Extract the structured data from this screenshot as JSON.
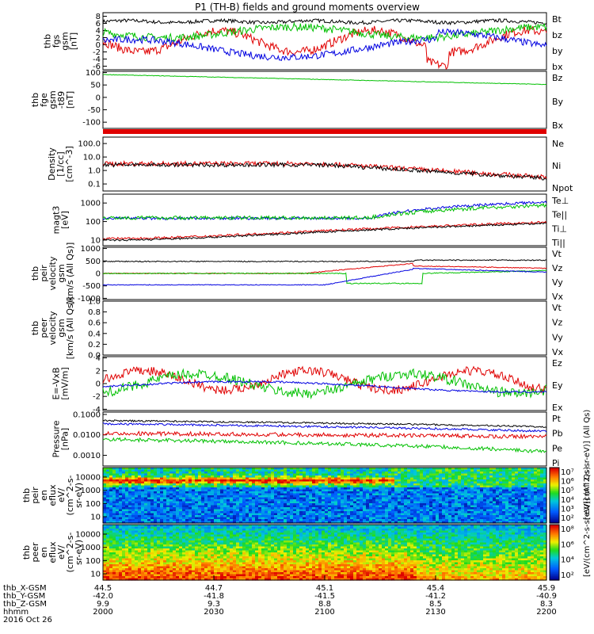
{
  "title": "P1 (TH-B) fields and ground moments overview",
  "colors": {
    "black": "#000000",
    "red": "#e00000",
    "green": "#00c000",
    "blue": "#0000e0"
  },
  "panels": [
    {
      "id": "fgs",
      "ylabel": [
        "thb",
        "fgs",
        "gsm",
        "[nT]"
      ],
      "ticks": [
        -6,
        -4,
        -2,
        0,
        2,
        4,
        6,
        8
      ],
      "ylim": [
        -7,
        9
      ],
      "legend": [
        "Bt",
        "bz",
        "by",
        "bx"
      ],
      "legend_colors": [
        "black",
        "red",
        "green",
        "blue"
      ]
    },
    {
      "id": "fge",
      "ylabel": [
        "thb",
        "fge",
        "gsm",
        "-t89",
        "[nT]"
      ],
      "ticks": [
        -100,
        -50,
        0,
        50,
        100
      ],
      "ylim": [
        -125,
        105
      ],
      "legend": [
        "Bz",
        "By",
        "Bx"
      ],
      "legend_colors": [
        "red",
        "green",
        "blue"
      ]
    },
    {
      "id": "density",
      "ylabel": [
        "Density",
        "[1/cc]",
        "[cm^-3]"
      ],
      "ticks": [
        "0.1",
        "1.0",
        "10.0",
        "100.0"
      ],
      "log": true,
      "ylim": [
        0.03,
        300
      ],
      "legend": [
        "Ne",
        "Ni",
        "Npot"
      ],
      "legend_colors": [
        "red",
        "black",
        "blue"
      ]
    },
    {
      "id": "temp",
      "ylabel": [
        "magt3",
        "[eV]"
      ],
      "ticks": [
        "10",
        "100",
        "1000"
      ],
      "log": true,
      "ylim": [
        5,
        3000
      ],
      "legend": [
        "Te⊥",
        "Te||",
        "Ti⊥",
        "Ti||"
      ],
      "legend_colors": [
        "red",
        "black",
        "blue",
        "green"
      ]
    },
    {
      "id": "peir",
      "ylabel": [
        "thb",
        "peir",
        "velocity",
        "gsm",
        "[km/s (All Qs)]"
      ],
      "ticks": [
        -1000,
        -500,
        0,
        500,
        1000
      ],
      "ylim": [
        -1050,
        1050
      ],
      "legend": [
        "Vt",
        "Vz",
        "Vy",
        "Vx"
      ],
      "legend_colors": [
        "black",
        "red",
        "green",
        "blue"
      ]
    },
    {
      "id": "peer",
      "ylabel": [
        "thb",
        "peer",
        "velocity",
        "gsm",
        "[km/s (All Qs)]"
      ],
      "ticks": [
        "0.0",
        "0.2",
        "0.4",
        "0.6",
        "0.8",
        "1.0"
      ],
      "ylim": [
        0,
        1
      ],
      "legend": [
        "Vt",
        "Vz",
        "Vy",
        "Vx"
      ],
      "legend_colors": [
        "black",
        "red",
        "green",
        "blue"
      ]
    },
    {
      "id": "efield",
      "ylabel": [
        "E=-VxB",
        "[mV/m]"
      ],
      "ticks": [
        -4,
        -2,
        0,
        2,
        4
      ],
      "ylim": [
        -4.2,
        4.2
      ],
      "legend": [
        "Ez",
        "Ey",
        "Ex"
      ],
      "legend_colors": [
        "red",
        "green",
        "blue"
      ]
    },
    {
      "id": "pressure",
      "ylabel": [
        "Pressure",
        "[nPa]"
      ],
      "ticks": [
        "0.0010",
        "0.0100",
        "0.1000"
      ],
      "log": true,
      "ylim": [
        0.0003,
        0.13
      ],
      "legend": [
        "Pt",
        "Pb",
        "Pe",
        "Pi"
      ],
      "legend_colors": [
        "black",
        "red",
        "green",
        "blue"
      ]
    },
    {
      "id": "ion_spec",
      "ylabel": [
        "thb",
        "peir",
        "en",
        "eflux",
        "eV/",
        "(cm^2-s-",
        "sr-eV)"
      ],
      "ticks": [
        "10",
        "100",
        "1000",
        "10000"
      ],
      "colorbar_ticks": [
        "10²",
        "10³",
        "10⁴",
        "10⁵",
        "10⁶",
        "10⁷"
      ],
      "colorbar_label": "[eV/(cm^2-s-sr-eV)] (All Qs)"
    },
    {
      "id": "elec_spec",
      "ylabel": [
        "thb",
        "peer",
        "en",
        "eflux",
        "eV/",
        "(cm^2-s-",
        "sr-eV)"
      ],
      "ticks": [
        "10",
        "100",
        "1000",
        "10000"
      ],
      "colorbar_ticks": [
        "10²",
        "10⁴",
        "10⁶",
        "10⁸"
      ],
      "colorbar_label": "[eV/(cm^2-s-sr-eV)] (All Qs)"
    }
  ],
  "xaxis": {
    "row_labels": [
      "thb_X-GSM",
      "thb_Y-GSM",
      "thb_Z-GSM",
      "hhmm",
      "2016 Oct 26"
    ],
    "columns": [
      [
        "44.5",
        "-42.0",
        "9.9",
        "2000"
      ],
      [
        "44.7",
        "-41.8",
        "9.3",
        "2030"
      ],
      [
        "45.1",
        "-41.5",
        "8.8",
        "2100"
      ],
      [
        "45.4",
        "-41.2",
        "8.5",
        "2130"
      ],
      [
        "45.9",
        "-40.9",
        "8.3",
        "2200"
      ]
    ]
  },
  "chart_data": {
    "type": "line",
    "title": "P1 (TH-B) fields and ground moments overview",
    "x": [
      "2000",
      "2030",
      "2100",
      "2130",
      "2200"
    ],
    "series": [
      {
        "name": "Bt",
        "values": [
          6.5,
          6.2,
          6.0,
          6.8,
          6.3
        ]
      },
      {
        "name": "bz",
        "values": [
          1.0,
          -1.0,
          2.0,
          -2.0,
          3.0
        ]
      },
      {
        "name": "by",
        "values": [
          3.5,
          4.0,
          3.0,
          2.0,
          2.0
        ]
      },
      {
        "name": "bx",
        "values": [
          -2.0,
          0.5,
          -1.0,
          4.0,
          -2.0
        ]
      },
      {
        "name": "By",
        "values": [
          95,
          80,
          70,
          62,
          55
        ]
      },
      {
        "name": "Ne",
        "values": [
          3.0,
          3.5,
          2.5,
          0.5,
          0.05
        ]
      },
      {
        "name": "Te⊥",
        "values": [
          15,
          15,
          20,
          50,
          90
        ]
      },
      {
        "name": "Ti||",
        "values": [
          150,
          160,
          200,
          400,
          500
        ]
      },
      {
        "name": "Vt",
        "values": [
          500,
          500,
          500,
          550,
          400
        ]
      },
      {
        "name": "Vx",
        "values": [
          -450,
          -450,
          -450,
          300,
          100
        ]
      },
      {
        "name": "Pt",
        "values": [
          0.06,
          0.05,
          0.04,
          0.03,
          0.025
        ]
      },
      {
        "name": "Pe",
        "values": [
          0.006,
          0.005,
          0.004,
          0.002,
          0.0015
        ]
      }
    ]
  }
}
